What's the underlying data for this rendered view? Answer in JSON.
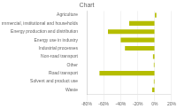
{
  "chart_data": {
    "type": "bar",
    "orientation": "horizontal",
    "title": "Chart",
    "categories": [
      "Agriculture",
      "Commercial, institutional and households",
      "Energy production and distribution",
      "Energy use in industry",
      "Industrial processes",
      "Non-road transport",
      "Other",
      "Road transport",
      "Solvent and product use",
      "Waste"
    ],
    "values": [
      2,
      -30,
      -55,
      -40,
      -35,
      -2,
      -1,
      -65,
      -1,
      -3
    ],
    "color": "#b5bd00",
    "xlim": [
      -80,
      20
    ],
    "xticks": [
      {
        "value": -80,
        "label": "-80%"
      },
      {
        "value": -60,
        "label": "-60%"
      },
      {
        "value": -40,
        "label": "-40%"
      },
      {
        "value": -20,
        "label": "-20%"
      },
      {
        "value": 0,
        "label": "0%"
      },
      {
        "value": 20,
        "label": "20%"
      }
    ],
    "grid": true
  }
}
